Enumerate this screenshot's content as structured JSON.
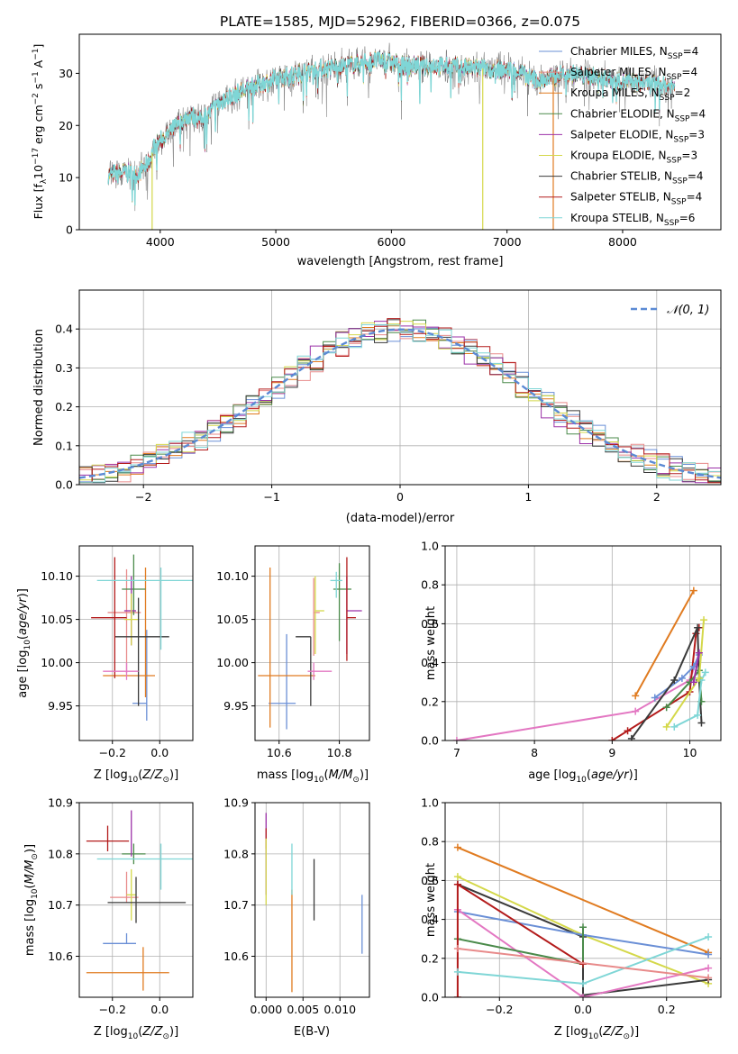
{
  "figure": {
    "title": "PLATE=1585, MJD=52962, FIBERID=0366, z=0.075",
    "colors": {
      "Chabrier MILES": "#6a8fd6",
      "Salpeter MILES": "#e88a8a",
      "Kroupa MILES": "#e07b20",
      "Chabrier ELODIE": "#4a8a4a",
      "Salpeter ELODIE": "#9b30a8",
      "Kroupa ELODIE": "#d4d84a",
      "Chabrier STELIB": "#3a3a3a",
      "Salpeter STELIB": "#b31b1b",
      "Kroupa STELIB": "#7fd6d6",
      "Salpeter STELIB line": "#e377c2",
      "gauss": "#5b8ad4"
    }
  },
  "chart_data": [
    {
      "id": "spectrum",
      "type": "line",
      "title": "PLATE=1585, MJD=52962, FIBERID=0366, z=0.075",
      "xlabel": "wavelength [Angstrom, rest frame]",
      "ylabel_parts": [
        "Flux [f",
        "λ",
        "10",
        "−17",
        " erg cm",
        "−2",
        " s",
        "−1",
        " A",
        "−1",
        "]"
      ],
      "xlim": [
        3300,
        8850
      ],
      "ylim": [
        0,
        37.5
      ],
      "xticks": [
        4000,
        5000,
        6000,
        7000,
        8000
      ],
      "yticks": [
        0,
        10,
        20,
        30
      ],
      "grid": false,
      "legend_placement": "upper-right",
      "legend": [
        {
          "label": "Chabrier MILES, N",
          "sub": "SSP",
          "tail": "=4",
          "color": "#6a8fd6"
        },
        {
          "label": "Salpeter MILES, N",
          "sub": "SSP",
          "tail": "=4",
          "color": "#e88a8a"
        },
        {
          "label": "Kroupa MILES, N",
          "sub": "SSP",
          "tail": "=2",
          "color": "#e07b20"
        },
        {
          "label": "Chabrier ELODIE, N",
          "sub": "SSP",
          "tail": "=4",
          "color": "#4a8a4a"
        },
        {
          "label": "Salpeter ELODIE, N",
          "sub": "SSP",
          "tail": "=3",
          "color": "#9b30a8"
        },
        {
          "label": "Kroupa ELODIE, N",
          "sub": "SSP",
          "tail": "=3",
          "color": "#d4d84a"
        },
        {
          "label": "Chabrier STELIB, N",
          "sub": "SSP",
          "tail": "=4",
          "color": "#3a3a3a"
        },
        {
          "label": "Salpeter STELIB, N",
          "sub": "SSP",
          "tail": "=4",
          "color": "#b31b1b"
        },
        {
          "label": "Kroupa STELIB, N",
          "sub": "SSP",
          "tail": "=6",
          "color": "#7fd6d6"
        }
      ],
      "continuum": [
        [
          3550,
          10.5
        ],
        [
          3700,
          11
        ],
        [
          3800,
          10.5
        ],
        [
          3900,
          13
        ],
        [
          3950,
          16
        ],
        [
          4050,
          18
        ],
        [
          4150,
          20
        ],
        [
          4250,
          22
        ],
        [
          4350,
          21
        ],
        [
          4450,
          23
        ],
        [
          4550,
          25
        ],
        [
          4650,
          26
        ],
        [
          4800,
          27.5
        ],
        [
          4950,
          28.5
        ],
        [
          5100,
          29.5
        ],
        [
          5300,
          30.5
        ],
        [
          5500,
          31.2
        ],
        [
          5700,
          31.8
        ],
        [
          5900,
          32.6
        ],
        [
          6100,
          31.6
        ],
        [
          6300,
          31.5
        ],
        [
          6500,
          31.3
        ],
        [
          6700,
          31
        ],
        [
          6900,
          30.8
        ],
        [
          7100,
          30.5
        ],
        [
          7200,
          29
        ],
        [
          7300,
          28.5
        ],
        [
          7500,
          30
        ],
        [
          7700,
          29.5
        ],
        [
          7900,
          28.8
        ],
        [
          8100,
          28.2
        ],
        [
          8300,
          27.8
        ],
        [
          8450,
          27.5
        ]
      ],
      "dips": [
        [
          3930,
          0.0,
          "#d4d84a"
        ],
        [
          6790,
          0.0,
          "#d4d84a"
        ],
        [
          7400,
          0.0,
          "#e07b20"
        ]
      ]
    },
    {
      "id": "residuals",
      "type": "histogram",
      "xlabel": "(data-model)/error",
      "ylabel": "Normed distribution",
      "xlim": [
        -2.5,
        2.5
      ],
      "ylim": [
        0,
        0.5
      ],
      "xticks": [
        -2,
        -1,
        0,
        1,
        2
      ],
      "yticks": [
        0.0,
        0.1,
        0.2,
        0.3,
        0.4
      ],
      "grid": true,
      "legend": {
        "label": "𝒩(0, 1)",
        "placement": "upper-right"
      },
      "bin_width": 0.1
    },
    {
      "id": "age-vs-Z",
      "type": "errorbar",
      "xlabel": "Z [log10(Z/Z⊙)]",
      "ylabel": "age [log10(age/yr)]",
      "xlim": [
        -0.34,
        0.14
      ],
      "ylim": [
        9.91,
        10.135
      ],
      "xticks": [
        -0.2,
        0.0
      ],
      "yticks": [
        9.95,
        10.0,
        10.05,
        10.1
      ],
      "grid": true,
      "points": [
        {
          "x": -0.055,
          "xerr": [
            0.06,
            0.0
          ],
          "y": 9.953,
          "yerr": [
            0.02,
            0.085
          ],
          "color": "#6a8fd6"
        },
        {
          "x": -0.06,
          "xerr": [
            0.18,
            0.04
          ],
          "y": 9.985,
          "yerr": [
            0.025,
            0.125
          ],
          "color": "#e07b20"
        },
        {
          "x": -0.14,
          "xerr": [
            0.08,
            0.06
          ],
          "y": 10.058,
          "yerr": [
            0.07,
            0.05
          ],
          "color": "#e88a8a"
        },
        {
          "x": -0.11,
          "xerr": [
            0.05,
            0.05
          ],
          "y": 10.085,
          "yerr": [
            0.03,
            0.04
          ],
          "color": "#4a8a4a"
        },
        {
          "x": -0.12,
          "xerr": [
            0.03,
            0.02
          ],
          "y": 10.06,
          "yerr": [
            0.04,
            0.04
          ],
          "color": "#9b30a8"
        },
        {
          "x": -0.12,
          "xerr": [
            0.03,
            0.03
          ],
          "y": 10.05,
          "yerr": [
            0.03,
            0.03
          ],
          "color": "#d4d84a"
        },
        {
          "x": -0.09,
          "xerr": [
            0.1,
            0.13
          ],
          "y": 10.03,
          "yerr": [
            0.08,
            0.045
          ],
          "color": "#3a3a3a"
        },
        {
          "x": -0.19,
          "xerr": [
            0.1,
            0.05
          ],
          "y": 10.052,
          "yerr": [
            0.07,
            0.07
          ],
          "color": "#b31b1b"
        },
        {
          "x": 0.005,
          "xerr": [
            0.27,
            0.14
          ],
          "y": 10.095,
          "yerr": [
            0.08,
            0.015
          ],
          "color": "#7fd6d6"
        },
        {
          "x": -0.14,
          "xerr": [
            0.1,
            0.05
          ],
          "y": 9.99,
          "yerr": [
            0.01,
            0.01
          ],
          "color": "#e377c2"
        }
      ]
    },
    {
      "id": "age-vs-mass",
      "type": "errorbar",
      "xlabel": "mass [log10(M/M⊙)]",
      "ylabel": "",
      "xlim": [
        10.52,
        10.9
      ],
      "ylim": [
        9.91,
        10.135
      ],
      "xticks": [
        10.6,
        10.8
      ],
      "yticks": [
        9.95,
        10.0,
        10.05,
        10.1
      ],
      "grid": true,
      "points": [
        {
          "x": 10.625,
          "xerr": [
            0.06,
            0.03
          ],
          "y": 9.953,
          "yerr": [
            0.03,
            0.08
          ],
          "color": "#6a8fd6"
        },
        {
          "x": 10.57,
          "xerr": [
            0.04,
            0.15
          ],
          "y": 9.985,
          "yerr": [
            0.06,
            0.125
          ],
          "color": "#e07b20"
        },
        {
          "x": 10.715,
          "xerr": [
            0.0,
            0.02
          ],
          "y": 10.058,
          "yerr": [
            0.05,
            0.04
          ],
          "color": "#e88a8a"
        },
        {
          "x": 10.8,
          "xerr": [
            0.02,
            0.04
          ],
          "y": 10.085,
          "yerr": [
            0.06,
            0.03
          ],
          "color": "#4a8a4a"
        },
        {
          "x": 10.825,
          "xerr": [
            0.0,
            0.05
          ],
          "y": 10.06,
          "yerr": [
            0.05,
            0.04
          ],
          "color": "#9b30a8"
        },
        {
          "x": 10.72,
          "xerr": [
            0.0,
            0.03
          ],
          "y": 10.06,
          "yerr": [
            0.05,
            0.04
          ],
          "color": "#d4d84a"
        },
        {
          "x": 10.705,
          "xerr": [
            0.05,
            0.0
          ],
          "y": 10.03,
          "yerr": [
            0.08,
            0.0
          ],
          "color": "#3a3a3a"
        },
        {
          "x": 10.825,
          "xerr": [
            0.0,
            0.03
          ],
          "y": 10.052,
          "yerr": [
            0.05,
            0.07
          ],
          "color": "#b31b1b"
        },
        {
          "x": 10.79,
          "xerr": [
            0.02,
            0.02
          ],
          "y": 10.095,
          "yerr": [
            0.02,
            0.01
          ],
          "color": "#7fd6d6"
        },
        {
          "x": 10.715,
          "xerr": [
            0.02,
            0.06
          ],
          "y": 9.99,
          "yerr": [
            0.01,
            0.01
          ],
          "color": "#e377c2"
        }
      ]
    },
    {
      "id": "weight-vs-age",
      "type": "line",
      "xlabel": "age  [log10(age/yr)]",
      "ylabel": "mass weight",
      "xlim": [
        6.85,
        10.4
      ],
      "ylim": [
        0,
        1.0
      ],
      "xticks": [
        7,
        8,
        9,
        10
      ],
      "yticks": [
        0.0,
        0.2,
        0.4,
        0.6,
        0.8,
        1.0
      ],
      "grid": true,
      "series": [
        {
          "color": "#e377c2",
          "x": [
            7.0,
            9.3,
            10.0,
            10.12
          ],
          "y": [
            0.0,
            0.15,
            0.31,
            0.45
          ]
        },
        {
          "color": "#b31b1b",
          "x": [
            9.0,
            9.2,
            10.0,
            10.08,
            10.12
          ],
          "y": [
            0.0,
            0.05,
            0.25,
            0.55,
            0.58
          ]
        },
        {
          "color": "#e07b20",
          "x": [
            9.3,
            10.05
          ],
          "y": [
            0.23,
            0.77
          ]
        },
        {
          "color": "#6a8fd6",
          "x": [
            9.55,
            9.9,
            10.05,
            10.12
          ],
          "y": [
            0.22,
            0.32,
            0.38,
            0.44
          ]
        },
        {
          "color": "#3a3a3a",
          "x": [
            9.25,
            9.8,
            10.1,
            10.12,
            10.15
          ],
          "y": [
            0.01,
            0.31,
            0.58,
            0.31,
            0.09
          ]
        },
        {
          "color": "#4a8a4a",
          "x": [
            9.7,
            10.0,
            10.12,
            10.15
          ],
          "y": [
            0.17,
            0.3,
            0.36,
            0.2
          ]
        },
        {
          "color": "#7fd6d6",
          "x": [
            9.8,
            10.1,
            10.15,
            10.2
          ],
          "y": [
            0.07,
            0.13,
            0.31,
            0.35
          ]
        },
        {
          "color": "#d4d84a",
          "x": [
            9.7,
            10.12,
            10.18
          ],
          "y": [
            0.07,
            0.32,
            0.62
          ]
        },
        {
          "color": "#9b30a8",
          "x": [
            10.05,
            10.12
          ],
          "y": [
            0.3,
            0.45
          ]
        }
      ]
    },
    {
      "id": "mass-vs-Z",
      "type": "errorbar",
      "xlabel": "Z [log10(Z/Z⊙)]",
      "ylabel": "mass [log10(M/M⊙)]",
      "xlim": [
        -0.34,
        0.14
      ],
      "ylim": [
        10.52,
        10.9
      ],
      "xticks": [
        -0.2,
        0.0
      ],
      "yticks": [
        10.6,
        10.7,
        10.8,
        10.9
      ],
      "grid": true,
      "points": [
        {
          "x": -0.14,
          "xerr": [
            0.1,
            0.04
          ],
          "y": 10.625,
          "yerr": [
            0.0,
            0.02
          ],
          "color": "#6a8fd6"
        },
        {
          "x": -0.07,
          "xerr": [
            0.24,
            0.11
          ],
          "y": 10.568,
          "yerr": [
            0.035,
            0.05
          ],
          "color": "#e07b20"
        },
        {
          "x": -0.14,
          "xerr": [
            0.07,
            0.05
          ],
          "y": 10.715,
          "yerr": [
            0.01,
            0.05
          ],
          "color": "#e88a8a"
        },
        {
          "x": -0.11,
          "xerr": [
            0.05,
            0.05
          ],
          "y": 10.8,
          "yerr": [
            0.02,
            0.02
          ],
          "color": "#4a8a4a"
        },
        {
          "x": -0.12,
          "xerr": [
            0.0,
            0.0
          ],
          "y": 10.825,
          "yerr": [
            0.03,
            0.06
          ],
          "color": "#9b30a8"
        },
        {
          "x": -0.12,
          "xerr": [
            0.02,
            0.02
          ],
          "y": 10.72,
          "yerr": [
            0.05,
            0.05
          ],
          "color": "#d4d84a"
        },
        {
          "x": -0.1,
          "xerr": [
            0.12,
            0.21
          ],
          "y": 10.705,
          "yerr": [
            0.04,
            0.05
          ],
          "color": "#3a3a3a"
        },
        {
          "x": -0.22,
          "xerr": [
            0.09,
            0.09
          ],
          "y": 10.825,
          "yerr": [
            0.02,
            0.03
          ],
          "color": "#b31b1b"
        },
        {
          "x": 0.005,
          "xerr": [
            0.27,
            0.14
          ],
          "y": 10.79,
          "yerr": [
            0.06,
            0.03
          ],
          "color": "#7fd6d6"
        }
      ]
    },
    {
      "id": "mass-vs-EBV",
      "type": "errorbar",
      "xlabel": "E(B-V)",
      "ylabel": "",
      "xlim": [
        -0.0015,
        0.014
      ],
      "ylim": [
        10.52,
        10.9
      ],
      "xticks": [
        0.0,
        0.005,
        0.01
      ],
      "yticks": [
        10.6,
        10.7,
        10.8,
        10.9
      ],
      "grid": true,
      "points": [
        {
          "x": 0.013,
          "xerr": [
            0,
            0
          ],
          "y": 10.66,
          "yerr": [
            0.055,
            0.06
          ],
          "color": "#6a8fd6"
        },
        {
          "x": 0.0035,
          "xerr": [
            0,
            0
          ],
          "y": 10.63,
          "yerr": [
            0.1,
            0.1
          ],
          "color": "#e07b20"
        },
        {
          "x": 0.0065,
          "xerr": [
            0,
            0
          ],
          "y": 10.73,
          "yerr": [
            0.06,
            0.06
          ],
          "color": "#3a3a3a"
        },
        {
          "x": 0.0035,
          "xerr": [
            0,
            0
          ],
          "y": 10.77,
          "yerr": [
            0.05,
            0.05
          ],
          "color": "#7fd6d6"
        },
        {
          "x": 0.0,
          "xerr": [
            0,
            0
          ],
          "y": 10.8,
          "yerr": [
            0.08,
            0.08
          ],
          "color": "#9b30a8"
        },
        {
          "x": 0.0,
          "xerr": [
            0,
            0
          ],
          "y": 10.83,
          "yerr": [
            0.02,
            0.02
          ],
          "color": "#b31b1b"
        },
        {
          "x": 0.0,
          "xerr": [
            0,
            0
          ],
          "y": 10.78,
          "yerr": [
            0.08,
            0.05
          ],
          "color": "#d4d84a"
        }
      ]
    },
    {
      "id": "weight-vs-Z",
      "type": "line",
      "xlabel": "Z [log10(Z/Z⊙)]",
      "ylabel": "mass weight",
      "xlim": [
        -0.33,
        0.33
      ],
      "ylim": [
        0,
        1.0
      ],
      "xticks": [
        -0.2,
        0.0,
        0.2
      ],
      "yticks": [
        0.0,
        0.2,
        0.4,
        0.6,
        0.8,
        1.0
      ],
      "grid": true,
      "series": [
        {
          "color": "#e07b20",
          "x": [
            -0.3,
            0.3
          ],
          "y": [
            0.77,
            0.23
          ]
        },
        {
          "color": "#d4d84a",
          "x": [
            -0.3,
            0.0,
            0.3
          ],
          "y": [
            0.62,
            0.32,
            0.07
          ]
        },
        {
          "color": "#3a3a3a",
          "x": [
            -0.3,
            0.0,
            0.0,
            0.3
          ],
          "y": [
            0.58,
            0.31,
            0.01,
            0.09
          ]
        },
        {
          "color": "#6a8fd6",
          "x": [
            -0.3,
            0.0,
            0.3
          ],
          "y": [
            0.44,
            0.32,
            0.22
          ]
        },
        {
          "color": "#e377c2",
          "x": [
            -0.3,
            0.0,
            0.3
          ],
          "y": [
            0.45,
            0.0,
            0.15
          ]
        },
        {
          "color": "#4a8a4a",
          "x": [
            -0.3,
            0.0,
            0.0
          ],
          "y": [
            0.3,
            0.17,
            0.36
          ]
        },
        {
          "color": "#b31b1b",
          "x": [
            -0.3,
            -0.3,
            0.0
          ],
          "y": [
            0.0,
            0.58,
            0.17
          ]
        },
        {
          "color": "#7fd6d6",
          "x": [
            -0.3,
            0.0,
            0.3
          ],
          "y": [
            0.13,
            0.07,
            0.31
          ]
        },
        {
          "color": "#e88a8a",
          "x": [
            -0.3,
            0.3
          ],
          "y": [
            0.25,
            0.1
          ]
        }
      ]
    }
  ]
}
